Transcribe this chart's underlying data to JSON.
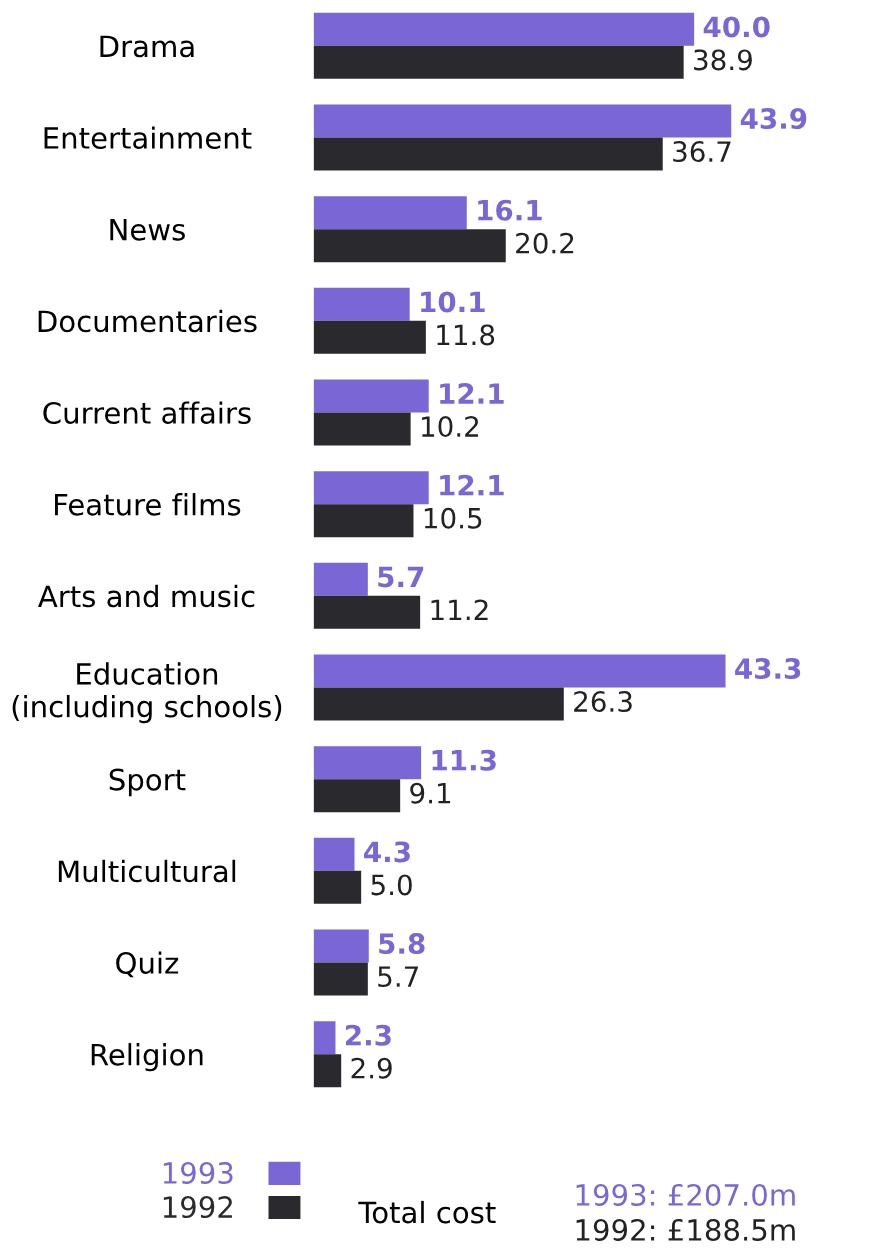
{
  "chart_data": {
    "type": "bar",
    "orientation": "horizontal",
    "legend": "bottom left",
    "grid": false,
    "categories": [
      "Drama",
      "Entertainment",
      "News",
      "Documentaries",
      "Current affairs",
      "Feature films",
      "Arts and music",
      "Education\n(including schools)",
      "Sport",
      "Multicultural",
      "Quiz",
      "Religion"
    ],
    "series": [
      {
        "name": "1993",
        "color": "#7b66d6",
        "values": [
          40.0,
          43.9,
          16.1,
          10.1,
          12.1,
          12.1,
          5.7,
          43.3,
          11.3,
          4.3,
          5.8,
          2.3
        ],
        "value_labels": [
          "40.0",
          "43.9",
          "16.1",
          "10.1",
          "12.1",
          "12.1",
          "5.7",
          "43.3",
          "11.3",
          "4.3",
          "5.8",
          "2.3"
        ]
      },
      {
        "name": "1992",
        "color": "#2a2a2e",
        "values": [
          38.9,
          36.7,
          20.2,
          11.8,
          10.2,
          10.5,
          11.2,
          26.3,
          9.1,
          5.0,
          5.7,
          2.9
        ],
        "value_labels": [
          "38.9",
          "36.7",
          "20.2",
          "11.8",
          "10.2",
          "10.5",
          "11.2",
          "26.3",
          "9.1",
          "5.0",
          "5.7",
          "2.9"
        ]
      }
    ],
    "annotations": [
      "Total cost",
      "1993: £207.0m",
      "1992: £188.5m"
    ]
  }
}
